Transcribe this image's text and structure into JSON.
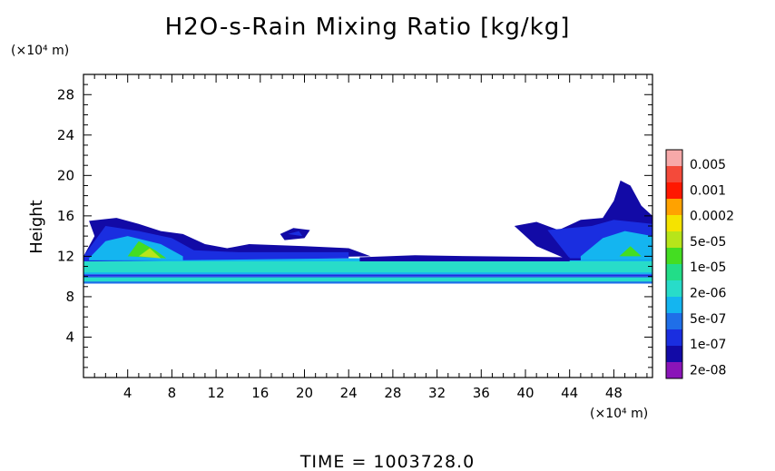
{
  "chart_data": {
    "type": "heatmap",
    "title": "H2O-s-Rain Mixing Ratio [kg/kg]",
    "ylabel": "Height",
    "x_unit_label": "(×10⁴ m)",
    "y_unit_label": "(×10⁴ m)",
    "xlim": [
      0,
      51.5
    ],
    "ylim": [
      0,
      30
    ],
    "x_ticks": [
      4,
      8,
      12,
      16,
      20,
      24,
      28,
      32,
      36,
      40,
      44,
      48
    ],
    "y_ticks": [
      4,
      8,
      12,
      16,
      20,
      24,
      28
    ],
    "colorbar": {
      "labels": [
        "0.005",
        "0.001",
        "0.0002",
        "5e-05",
        "1e-05",
        "2e-06",
        "5e-07",
        "1e-07",
        "2e-08"
      ],
      "colors": [
        "#f7a9a9",
        "#f44a3a",
        "#ff1800",
        "#ffa200",
        "#f5e300",
        "#b7e51a",
        "#44dd22",
        "#22dd88",
        "#28dcc9",
        "#14b5f0",
        "#1f6fe8",
        "#1a2ee0",
        "#120aa6",
        "#8a14b8"
      ]
    },
    "regions": [
      {
        "level": 3,
        "points": [
          [
            0,
            9.3
          ],
          [
            51.5,
            9.3
          ],
          [
            51.5,
            10.0
          ],
          [
            0,
            10.0
          ]
        ]
      },
      {
        "level": 5,
        "points": [
          [
            0,
            9.5
          ],
          [
            51.5,
            9.5
          ],
          [
            51.5,
            9.9
          ],
          [
            0,
            9.9
          ]
        ]
      },
      {
        "level": 4,
        "points": [
          [
            0,
            10.2
          ],
          [
            51.5,
            10.2
          ],
          [
            51.5,
            11.8
          ],
          [
            0,
            11.8
          ]
        ]
      },
      {
        "level": 5,
        "points": [
          [
            0,
            10.4
          ],
          [
            51.5,
            10.4
          ],
          [
            51.5,
            11.5
          ],
          [
            0,
            11.5
          ]
        ]
      },
      {
        "level": 2,
        "points": [
          [
            0,
            10.0
          ],
          [
            51.5,
            10.0
          ],
          [
            51.5,
            10.2
          ],
          [
            0,
            10.2
          ]
        ]
      },
      {
        "level": 1,
        "points": [
          [
            0,
            12
          ],
          [
            1,
            14
          ],
          [
            0.5,
            15.5
          ],
          [
            3,
            15.8
          ],
          [
            5,
            15.2
          ],
          [
            7,
            14.5
          ],
          [
            9,
            14.2
          ],
          [
            11,
            13.2
          ],
          [
            13,
            12.8
          ],
          [
            15,
            13.2
          ],
          [
            20,
            13.0
          ],
          [
            24,
            12.8
          ],
          [
            26,
            12.0
          ],
          [
            0,
            11.5
          ]
        ]
      },
      {
        "level": 2,
        "points": [
          [
            0,
            12
          ],
          [
            2,
            15
          ],
          [
            5,
            14.5
          ],
          [
            8,
            13.8
          ],
          [
            10,
            12.6
          ],
          [
            14,
            12.4
          ],
          [
            24,
            12.4
          ],
          [
            24,
            11.8
          ],
          [
            0,
            11.5
          ]
        ]
      },
      {
        "level": 4,
        "points": [
          [
            0.5,
            11.8
          ],
          [
            2,
            13.5
          ],
          [
            4,
            14.0
          ],
          [
            7,
            13.2
          ],
          [
            9,
            12.0
          ],
          [
            9,
            11.6
          ],
          [
            0.5,
            11.6
          ]
        ]
      },
      {
        "level": 7,
        "points": [
          [
            4,
            12.0
          ],
          [
            5,
            13.5
          ],
          [
            6.5,
            12.6
          ],
          [
            7.5,
            11.8
          ]
        ]
      },
      {
        "level": 8,
        "points": [
          [
            5,
            12.0
          ],
          [
            6,
            12.8
          ],
          [
            7,
            11.8
          ]
        ]
      },
      {
        "level": 1,
        "points": [
          [
            17.8,
            14.2
          ],
          [
            19.0,
            14.8
          ],
          [
            20.5,
            14.6
          ],
          [
            20.0,
            13.8
          ],
          [
            18.2,
            13.6
          ]
        ]
      },
      {
        "level": 2,
        "points": [
          [
            18.5,
            14.2
          ],
          [
            19.5,
            14.5
          ],
          [
            19.8,
            14.0
          ]
        ]
      },
      {
        "level": 1,
        "points": [
          [
            39,
            15.0
          ],
          [
            41,
            15.4
          ],
          [
            43,
            14.6
          ],
          [
            45,
            15.6
          ],
          [
            47,
            15.8
          ],
          [
            48,
            17.5
          ],
          [
            48.6,
            19.5
          ],
          [
            49.5,
            19.0
          ],
          [
            50.5,
            17.0
          ],
          [
            51.5,
            16.0
          ],
          [
            51.5,
            11.6
          ],
          [
            44,
            11.6
          ],
          [
            41,
            13.0
          ]
        ]
      },
      {
        "level": 2,
        "points": [
          [
            42,
            14.6
          ],
          [
            46,
            15.0
          ],
          [
            48,
            15.6
          ],
          [
            51.5,
            15.2
          ],
          [
            51.5,
            11.8
          ],
          [
            44,
            11.8
          ]
        ]
      },
      {
        "level": 4,
        "points": [
          [
            45,
            12.0
          ],
          [
            47,
            13.8
          ],
          [
            49,
            14.5
          ],
          [
            51.5,
            14.0
          ],
          [
            51.5,
            11.6
          ],
          [
            45,
            11.6
          ]
        ]
      },
      {
        "level": 7,
        "points": [
          [
            48.5,
            12.0
          ],
          [
            49.5,
            13.0
          ],
          [
            50.5,
            12.0
          ]
        ]
      },
      {
        "level": 1,
        "points": [
          [
            25,
            11.9
          ],
          [
            30,
            12.1
          ],
          [
            36,
            12.0
          ],
          [
            44,
            11.9
          ],
          [
            44,
            11.5
          ],
          [
            25,
            11.5
          ]
        ]
      }
    ]
  },
  "footer": {
    "time_label": "TIME  =  1003728.0"
  }
}
